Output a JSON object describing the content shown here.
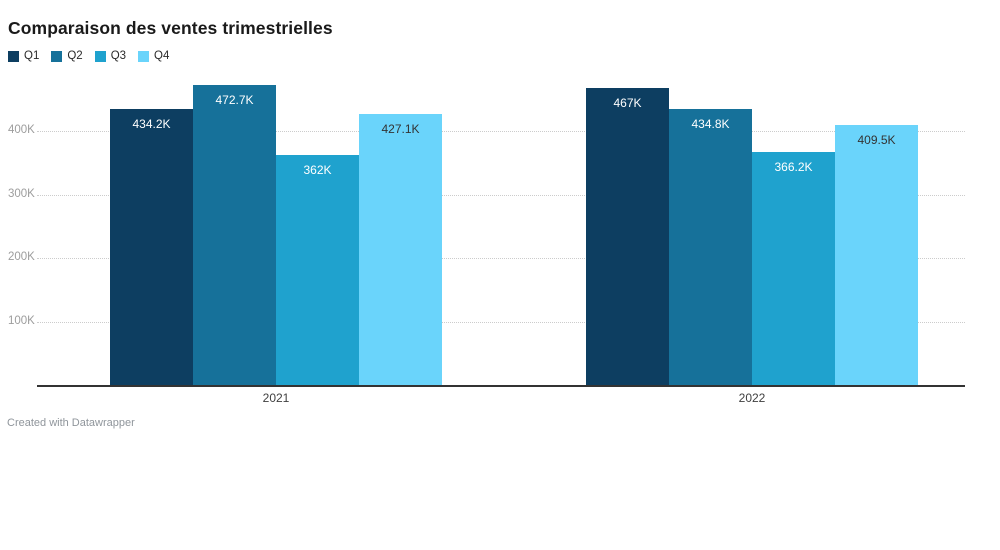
{
  "chart_data": {
    "type": "bar",
    "title": "Comparaison des ventes trimestrielles",
    "categories": [
      "2021",
      "2022"
    ],
    "series": [
      {
        "name": "Q1",
        "color": "#0d3e61",
        "label_color": "#ffffff",
        "values": [
          434200,
          467000
        ],
        "labels": [
          "434.2K",
          "467K"
        ]
      },
      {
        "name": "Q2",
        "color": "#16719a",
        "label_color": "#ffffff",
        "values": [
          472700,
          434800
        ],
        "labels": [
          "472.7K",
          "434.8K"
        ]
      },
      {
        "name": "Q3",
        "color": "#1fa2ce",
        "label_color": "#ffffff",
        "values": [
          362000,
          366200
        ],
        "labels": [
          "362K",
          "366.2K"
        ]
      },
      {
        "name": "Q4",
        "color": "#6ad4fb",
        "label_color": "#333333",
        "values": [
          427100,
          409500
        ],
        "labels": [
          "427.1K",
          "409.5K"
        ]
      }
    ],
    "y_ticks": [
      {
        "value": 100000,
        "label": "100K"
      },
      {
        "value": 200000,
        "label": "200K"
      },
      {
        "value": 300000,
        "label": "300K"
      },
      {
        "value": 400000,
        "label": "400K"
      }
    ],
    "ylim": [
      0,
      488000
    ],
    "grid": true,
    "legend_position": "top-left",
    "xlabel": "",
    "ylabel": ""
  },
  "footer": {
    "credit": "Created with Datawrapper"
  }
}
